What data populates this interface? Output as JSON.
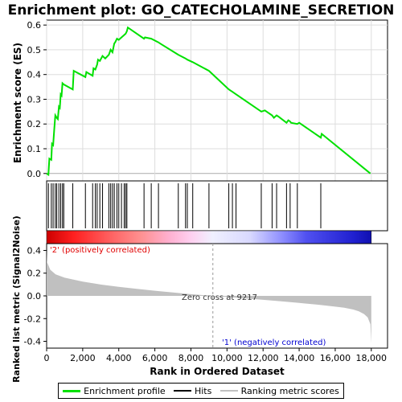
{
  "title": "Enrichment plot: GO_CATECHOLAMINE_SECRETION",
  "top_ylabel": "Enrichment score (ES)",
  "bottom_ylabel": "Ranked list metric (Signal2Noise)",
  "xlabel": "Rank in Ordered Dataset",
  "positive_label": "'2' (positively correlated)",
  "negative_label": "'1' (negatively correlated)",
  "zero_cross_label": "Zero cross at 9217",
  "colors": {
    "es_line": "#00e000",
    "positive_label": "#e00000",
    "negative_label": "#0000d0",
    "metric_fill": "#c0c0c0",
    "grid": "#dddddd"
  },
  "legend": [
    {
      "label": "Enrichment profile",
      "color": "#00e000",
      "icon": "line-icon"
    },
    {
      "label": "Hits",
      "color": "#000000",
      "icon": "line-icon"
    },
    {
      "label": "Ranking metric scores",
      "color": "#c0c0c0",
      "icon": "line-icon"
    }
  ],
  "chart_data": [
    {
      "type": "line",
      "name": "enrichment-profile",
      "xlim": [
        0,
        18900
      ],
      "ylim": [
        -0.03,
        0.62
      ],
      "yticks": [
        0.0,
        0.1,
        0.2,
        0.3,
        0.4,
        0.5,
        0.6
      ],
      "ytick_labels": [
        "0.0",
        "0.1",
        "0.2",
        "0.3",
        "0.4",
        "0.5",
        "0.6"
      ],
      "x": [
        0,
        100,
        150,
        260,
        300,
        360,
        420,
        480,
        520,
        560,
        620,
        680,
        730,
        780,
        830,
        880,
        950,
        1450,
        1500,
        2150,
        2200,
        2550,
        2600,
        2700,
        2800,
        2850,
        2950,
        3100,
        3250,
        3450,
        3550,
        3650,
        3750,
        3800,
        3900,
        4000,
        4150,
        4300,
        4380,
        4450,
        4500,
        5400,
        5450,
        5800,
        6200,
        6300,
        7300,
        7700,
        7800,
        8100,
        9000,
        10100,
        10300,
        10500,
        11900,
        12100,
        12500,
        12600,
        12750,
        12850,
        13300,
        13400,
        13500,
        13550,
        13900,
        14000,
        15200,
        15250,
        17950
      ],
      "y": [
        0.0,
        -0.005,
        0.06,
        0.055,
        0.12,
        0.115,
        0.175,
        0.235,
        0.23,
        0.225,
        0.22,
        0.27,
        0.265,
        0.32,
        0.315,
        0.365,
        0.36,
        0.34,
        0.415,
        0.39,
        0.41,
        0.395,
        0.425,
        0.42,
        0.44,
        0.46,
        0.455,
        0.475,
        0.465,
        0.48,
        0.5,
        0.49,
        0.525,
        0.53,
        0.545,
        0.54,
        0.55,
        0.56,
        0.565,
        0.575,
        0.59,
        0.545,
        0.55,
        0.545,
        0.53,
        0.525,
        0.48,
        0.465,
        0.46,
        0.45,
        0.415,
        0.34,
        0.33,
        0.32,
        0.25,
        0.255,
        0.235,
        0.225,
        0.235,
        0.23,
        0.205,
        0.215,
        0.21,
        0.205,
        0.2,
        0.205,
        0.145,
        0.16,
        0.0
      ]
    },
    {
      "type": "scatter",
      "name": "hits",
      "x": [
        100,
        260,
        360,
        480,
        560,
        680,
        780,
        880,
        950,
        1450,
        2150,
        2550,
        2700,
        2800,
        2950,
        3100,
        3450,
        3550,
        3650,
        3750,
        3900,
        4000,
        4150,
        4300,
        4380,
        4450,
        5400,
        5800,
        6200,
        7300,
        7700,
        7800,
        8100,
        9000,
        10100,
        10300,
        10500,
        11900,
        12500,
        12750,
        13300,
        13500,
        13900,
        15200
      ]
    },
    {
      "type": "area",
      "name": "ranked-metric",
      "xlim": [
        0,
        18900
      ],
      "ylim": [
        -0.46,
        0.46
      ],
      "yticks": [
        -0.4,
        -0.2,
        0.0,
        0.2,
        0.4
      ],
      "ytick_labels": [
        "-0.4",
        "-0.2",
        "0.0",
        "0.2",
        "0.4"
      ],
      "x": [
        0,
        20,
        200,
        500,
        1000,
        2000,
        3000,
        4000,
        5000,
        6000,
        7000,
        8000,
        9217,
        10000,
        11000,
        12000,
        13000,
        14000,
        15000,
        16000,
        16500,
        17000,
        17300,
        17600,
        17800,
        17950,
        18000
      ],
      "y": [
        0.4,
        0.3,
        0.23,
        0.19,
        0.16,
        0.125,
        0.1,
        0.08,
        0.062,
        0.045,
        0.03,
        0.015,
        0.0,
        -0.01,
        -0.022,
        -0.035,
        -0.048,
        -0.062,
        -0.077,
        -0.095,
        -0.105,
        -0.12,
        -0.135,
        -0.16,
        -0.19,
        -0.25,
        -0.42
      ]
    },
    {
      "type": "heatmap",
      "name": "rank-color-bar",
      "stops": [
        {
          "x": 0,
          "color": "#cc0000"
        },
        {
          "x": 1500,
          "color": "#ff2020"
        },
        {
          "x": 3500,
          "color": "#ff6060"
        },
        {
          "x": 5200,
          "color": "#ff9090"
        },
        {
          "x": 6800,
          "color": "#ffb0d0"
        },
        {
          "x": 8000,
          "color": "#ffd0f0"
        },
        {
          "x": 9200,
          "color": "#f0f0ff"
        },
        {
          "x": 11300,
          "color": "#d8d8ff"
        },
        {
          "x": 13000,
          "color": "#9090ff"
        },
        {
          "x": 14400,
          "color": "#5050f0"
        },
        {
          "x": 17000,
          "color": "#2020d0"
        },
        {
          "x": 18000,
          "color": "#1010b0"
        }
      ]
    }
  ],
  "xaxis": {
    "ticks": [
      0,
      2000,
      4000,
      6000,
      8000,
      10000,
      12000,
      14000,
      16000,
      18000
    ],
    "tick_labels": [
      "0",
      "2,000",
      "4,000",
      "6,000",
      "8,000",
      "10,000",
      "12,000",
      "14,000",
      "16,000",
      "18,000"
    ]
  }
}
